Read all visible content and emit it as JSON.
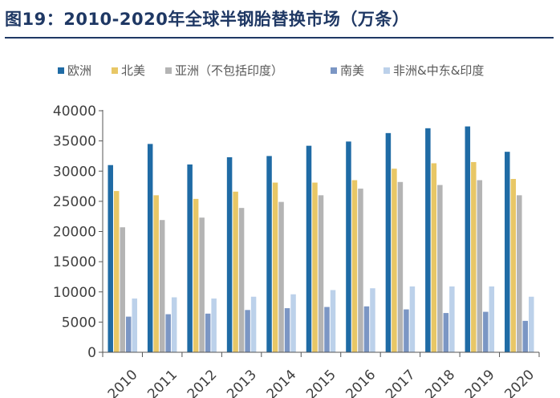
{
  "page": {
    "title": "图19：2010-2020年全球半钢胎替换市场（万条）"
  },
  "chart_data": {
    "type": "bar",
    "title": "图19：2010-2020年全球半钢胎替换市场（万条）",
    "xlabel": "",
    "ylabel": "",
    "ylim": [
      0,
      40000
    ],
    "yticks": [
      0,
      5000,
      10000,
      15000,
      20000,
      25000,
      30000,
      35000,
      40000
    ],
    "legend_position": "top",
    "grid": false,
    "categories": [
      "2010",
      "2011",
      "2012",
      "2013",
      "2014",
      "2015",
      "2016",
      "2017",
      "2018",
      "2019",
      "2020"
    ],
    "series": [
      {
        "name": "欧洲",
        "color": "#1f6ba5",
        "values": [
          31000,
          34500,
          31100,
          32300,
          32500,
          34200,
          34900,
          36300,
          37100,
          37400,
          33200
        ]
      },
      {
        "name": "北美",
        "color": "#e8c766",
        "values": [
          26700,
          26000,
          25400,
          26600,
          28100,
          28100,
          28500,
          30400,
          31300,
          31500,
          28700
        ]
      },
      {
        "name": "亚洲（不包括印度）",
        "color": "#b4b4b4",
        "values": [
          20700,
          21900,
          22300,
          23900,
          24900,
          26000,
          27100,
          28200,
          27700,
          28500,
          26000
        ]
      },
      {
        "name": "南美",
        "color": "#7b96c4",
        "values": [
          5900,
          6300,
          6400,
          7000,
          7300,
          7500,
          7600,
          7100,
          6500,
          6700,
          5200
        ]
      },
      {
        "name": "非洲&中东&印度",
        "color": "#bcd1ea",
        "values": [
          8900,
          9100,
          8900,
          9200,
          9600,
          10300,
          10600,
          10900,
          10900,
          10900,
          9200
        ]
      }
    ]
  }
}
